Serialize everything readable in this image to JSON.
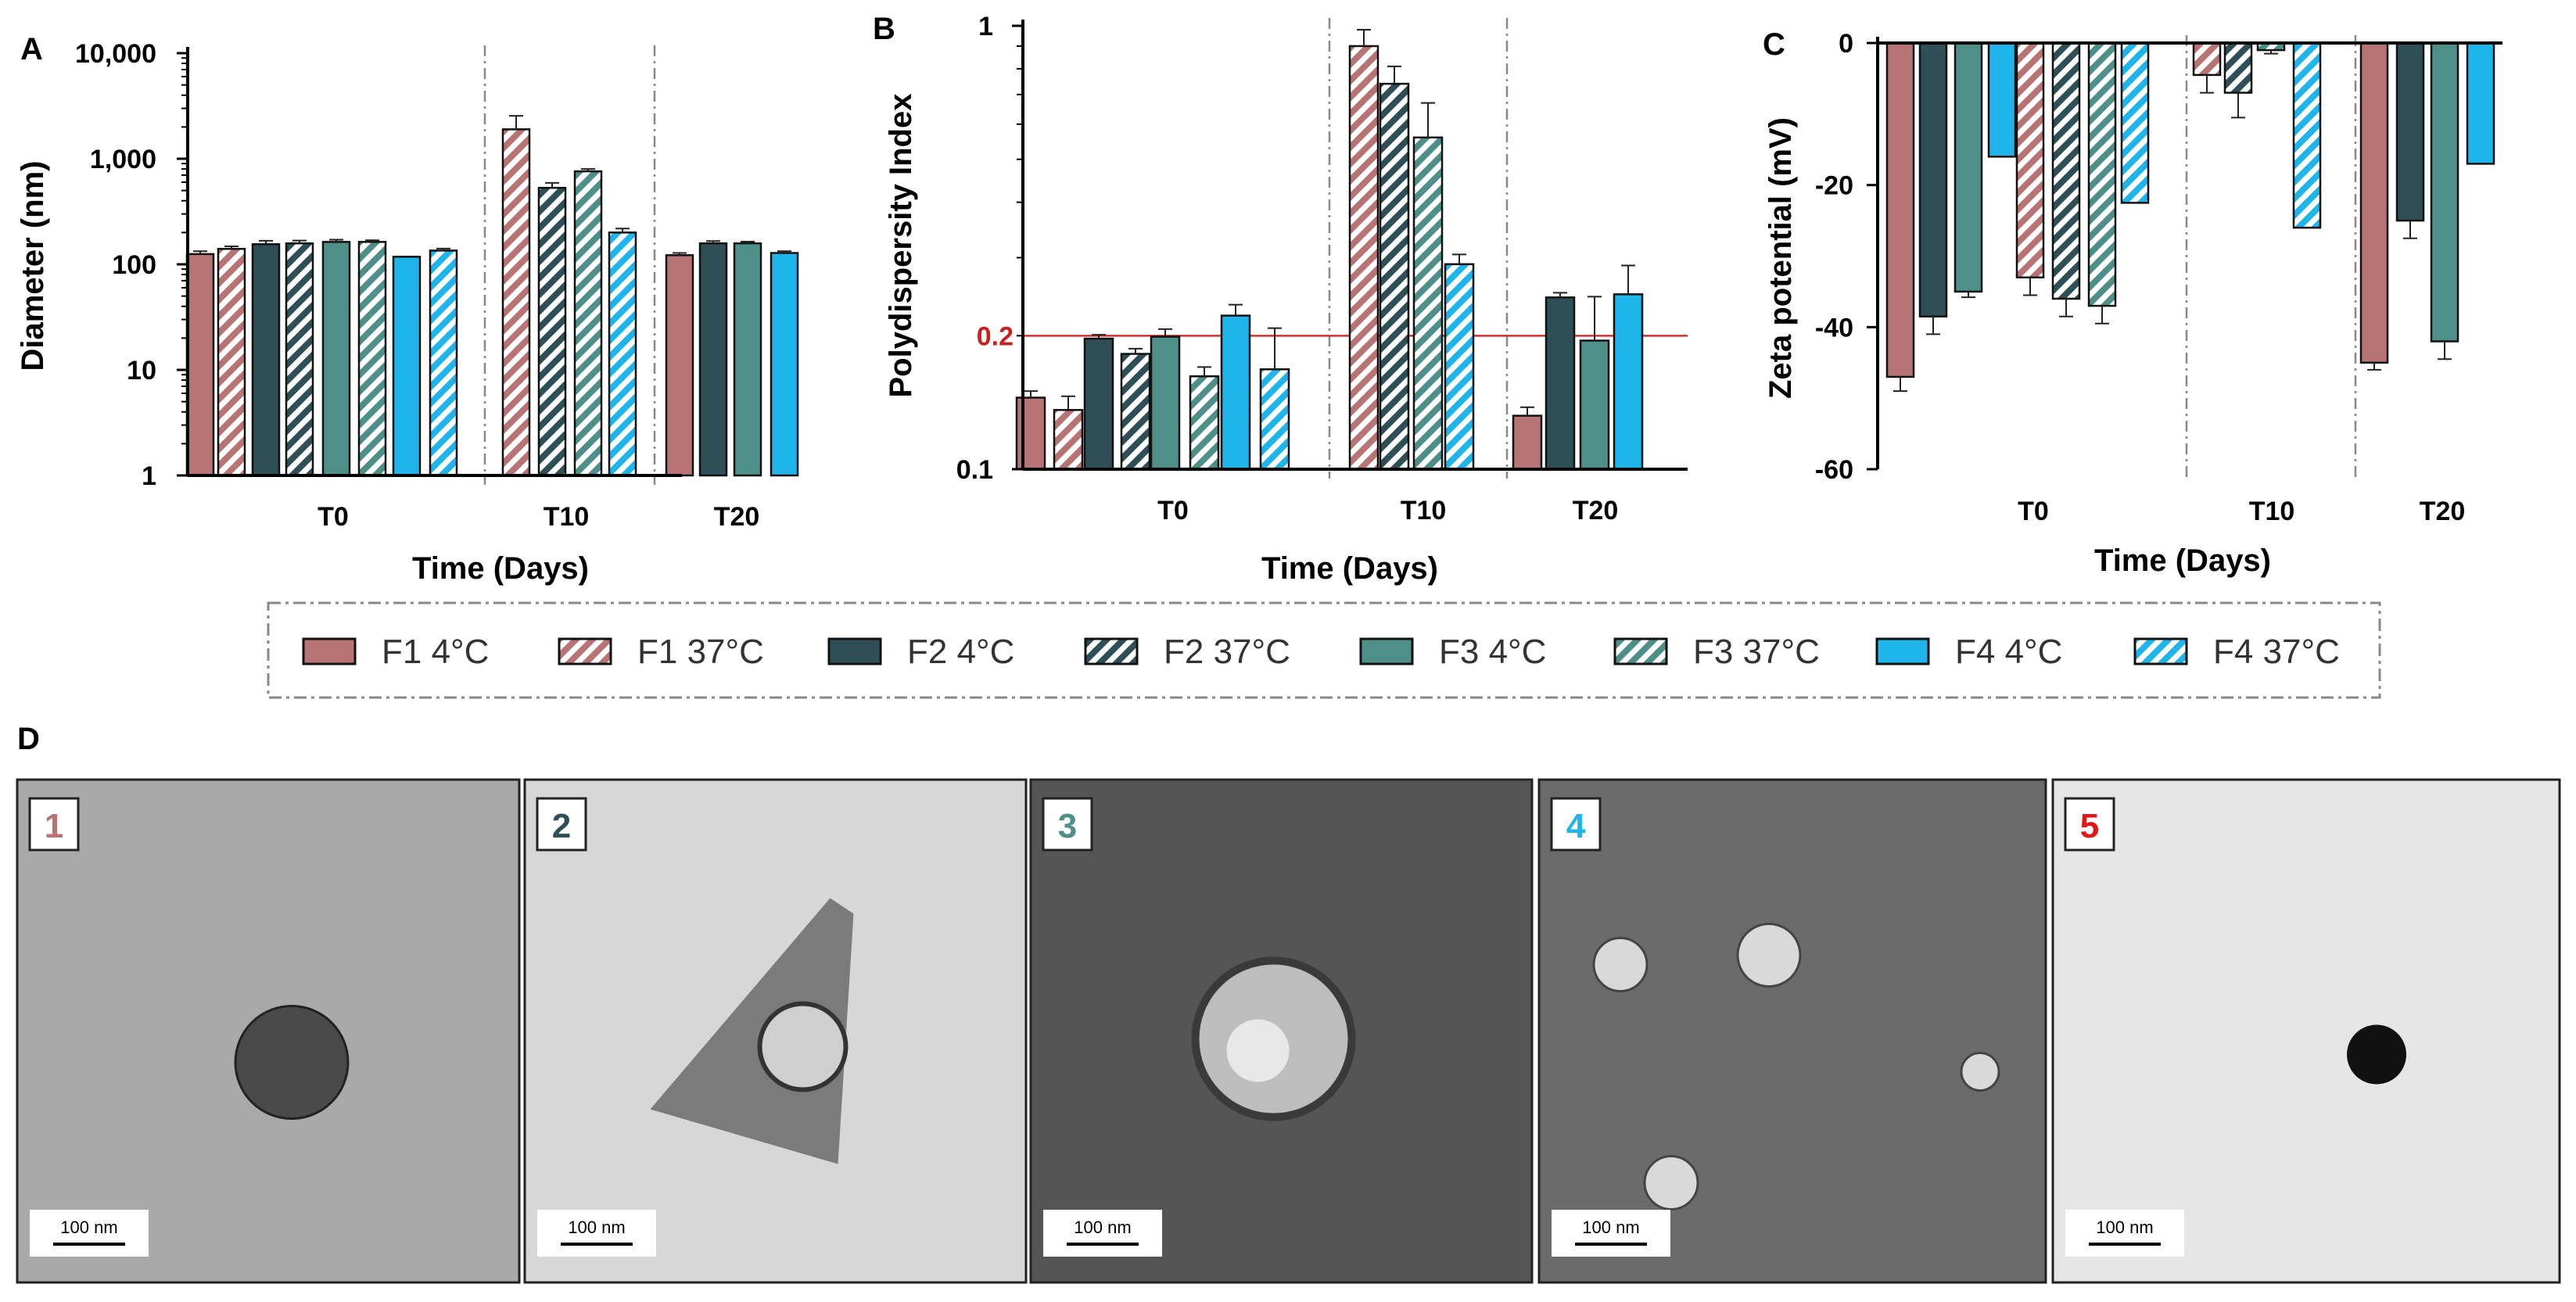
{
  "legend": [
    {
      "label": "F1 4°C",
      "color": "#b87474",
      "hatched": false
    },
    {
      "label": "F1 37°C",
      "color": "#b87474",
      "hatched": true
    },
    {
      "label": "F2 4°C",
      "color": "#2f4f57",
      "hatched": false
    },
    {
      "label": "F2 37°C",
      "color": "#2f4f57",
      "hatched": true
    },
    {
      "label": "F3 4°C",
      "color": "#4e9089",
      "hatched": false
    },
    {
      "label": "F3 37°C",
      "color": "#4e9089",
      "hatched": true
    },
    {
      "label": "F4 4°C",
      "color": "#1fb5ea",
      "hatched": false
    },
    {
      "label": "F4 37°C",
      "color": "#1fb5ea",
      "hatched": true
    }
  ],
  "chart_data": [
    {
      "panel": "A",
      "type": "bar",
      "scale": "log",
      "xlabel": "Time (Days)",
      "ylabel": "Diameter (nm)",
      "ylim": [
        1,
        10000
      ],
      "yticks": [
        {
          "v": 1,
          "label": "1"
        },
        {
          "v": 10,
          "label": "10"
        },
        {
          "v": 100,
          "label": "100"
        },
        {
          "v": 1000,
          "label": "1,000"
        },
        {
          "v": 10000,
          "label": "10,000"
        }
      ],
      "groups": [
        {
          "label": "T0",
          "bars": [
            {
              "series": "F1 4°C",
              "value": 125,
              "error": 8
            },
            {
              "series": "F1 37°C",
              "value": 140,
              "error": 8
            },
            {
              "series": "F2 4°C",
              "value": 155,
              "error": 12
            },
            {
              "series": "F2 37°C",
              "value": 158,
              "error": 10
            },
            {
              "series": "F3 4°C",
              "value": 163,
              "error": 8
            },
            {
              "series": "F3 37°C",
              "value": 163,
              "error": 6
            },
            {
              "series": "F4 4°C",
              "value": 118,
              "error": 0
            },
            {
              "series": "F4 37°C",
              "value": 135,
              "error": 6
            }
          ]
        },
        {
          "label": "T10",
          "bars": [
            {
              "series": "F1 37°C",
              "value": 1900,
              "error": 650
            },
            {
              "series": "F2 37°C",
              "value": 530,
              "error": 60
            },
            {
              "series": "F3 37°C",
              "value": 760,
              "error": 40
            },
            {
              "series": "F4 37°C",
              "value": 200,
              "error": 18
            }
          ]
        },
        {
          "label": "T20",
          "bars": [
            {
              "series": "F1 4°C",
              "value": 122,
              "error": 6
            },
            {
              "series": "F2 4°C",
              "value": 158,
              "error": 8
            },
            {
              "series": "F3 4°C",
              "value": 158,
              "error": 6
            },
            {
              "series": "F4 4°C",
              "value": 128,
              "error": 5
            }
          ]
        }
      ]
    },
    {
      "panel": "B",
      "type": "bar",
      "scale": "log",
      "xlabel": "Time (Days)",
      "ylabel": "Polydispersity Index",
      "ylim": [
        0.1,
        1
      ],
      "yticks": [
        {
          "v": 0.1,
          "label": "0.1"
        },
        {
          "v": 1,
          "label": "1"
        }
      ],
      "reference_line": {
        "value": 0.2,
        "label": "0.2",
        "color": "#d03030"
      },
      "groups": [
        {
          "label": "T0",
          "bars": [
            {
              "series": "F1 4°C",
              "value": 0.145,
              "error": 0.005
            },
            {
              "series": "F1 37°C",
              "value": 0.136,
              "error": 0.01
            },
            {
              "series": "F2 4°C",
              "value": 0.197,
              "error": 0.004
            },
            {
              "series": "F2 37°C",
              "value": 0.182,
              "error": 0.005
            },
            {
              "series": "F3 4°C",
              "value": 0.199,
              "error": 0.008
            },
            {
              "series": "F3 37°C",
              "value": 0.162,
              "error": 0.008
            },
            {
              "series": "F4 4°C",
              "value": 0.222,
              "error": 0.013
            },
            {
              "series": "F4 37°C",
              "value": 0.168,
              "error": 0.04
            }
          ]
        },
        {
          "label": "T10",
          "bars": [
            {
              "series": "F1 37°C",
              "value": 0.9,
              "error": 0.08
            },
            {
              "series": "F2 37°C",
              "value": 0.74,
              "error": 0.07
            },
            {
              "series": "F3 37°C",
              "value": 0.56,
              "error": 0.11
            },
            {
              "series": "F4 37°C",
              "value": 0.29,
              "error": 0.015
            }
          ]
        },
        {
          "label": "T20",
          "bars": [
            {
              "series": "F1 4°C",
              "value": 0.132,
              "error": 0.006
            },
            {
              "series": "F2 4°C",
              "value": 0.244,
              "error": 0.006
            },
            {
              "series": "F3 4°C",
              "value": 0.195,
              "error": 0.05
            },
            {
              "series": "F4 4°C",
              "value": 0.248,
              "error": 0.04
            }
          ]
        }
      ]
    },
    {
      "panel": "C",
      "type": "bar",
      "scale": "linear",
      "xlabel": "Time (Days)",
      "ylabel": "Zeta potential (mV)",
      "ylim": [
        -60,
        0
      ],
      "yticks": [
        {
          "v": 0,
          "label": "0"
        },
        {
          "v": -20,
          "label": "-20"
        },
        {
          "v": -40,
          "label": "-40"
        },
        {
          "v": -60,
          "label": "-60"
        }
      ],
      "groups": [
        {
          "label": "T0",
          "bars": [
            {
              "series": "F1 4°C",
              "value": -47,
              "error": 2
            },
            {
              "series": "F2 4°C",
              "value": -38.5,
              "error": 2.5
            },
            {
              "series": "F3 4°C",
              "value": -35,
              "error": 0.8
            },
            {
              "series": "F4 4°C",
              "value": -16,
              "error": 0
            },
            {
              "series": "F1 37°C",
              "value": -33,
              "error": 2.5
            },
            {
              "series": "F2 37°C",
              "value": -36,
              "error": 2.5
            },
            {
              "series": "F3 37°C",
              "value": -37,
              "error": 2.5
            },
            {
              "series": "F4 37°C",
              "value": -22.5,
              "error": 0
            }
          ]
        },
        {
          "label": "T10",
          "bars": [
            {
              "series": "F1 37°C",
              "value": -4.5,
              "error": 2.5
            },
            {
              "series": "F2 37°C",
              "value": -7,
              "error": 3.5
            },
            {
              "series": "F3 37°C",
              "value": -1,
              "error": 0.5
            },
            {
              "series": "F4 37°C",
              "value": -26,
              "error": 0
            }
          ]
        },
        {
          "label": "T20",
          "bars": [
            {
              "series": "F1 4°C",
              "value": -45,
              "error": 1
            },
            {
              "series": "F2 4°C",
              "value": -25,
              "error": 2.5
            },
            {
              "series": "F3 4°C",
              "value": -42,
              "error": 2.5
            },
            {
              "series": "F4 4°C",
              "value": -17,
              "error": 0
            }
          ]
        }
      ]
    }
  ],
  "panel_d": {
    "letter": "D",
    "scale_bar_label": "100 nm",
    "images": [
      {
        "number": "1",
        "color": "#b87474"
      },
      {
        "number": "2",
        "color": "#2f4f57"
      },
      {
        "number": "3",
        "color": "#4e9089"
      },
      {
        "number": "4",
        "color": "#1fb5ea"
      },
      {
        "number": "5",
        "color": "#e01818"
      }
    ]
  }
}
